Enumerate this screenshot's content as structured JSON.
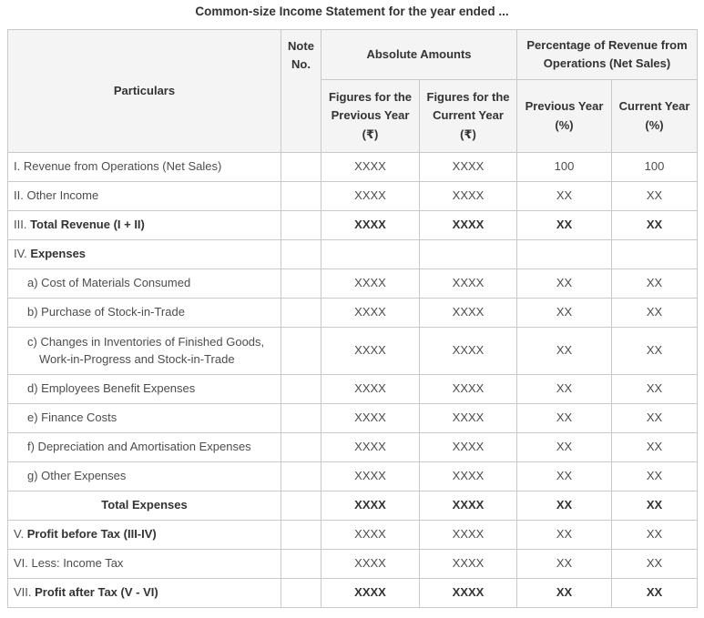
{
  "page": {
    "title": "Common-size Income Statement for the year ended ..."
  },
  "colors": {
    "header_bg": "#f4f4f4",
    "border": "#c9c9c9",
    "text": "#4d4d4d",
    "text_bold": "#333333",
    "background": "#ffffff"
  },
  "table": {
    "columns": {
      "particulars": "Particulars",
      "note_no": "Note\nNo.",
      "absolute_amounts": "Absolute Amounts",
      "percentage": "Percentage of Revenue from\nOperations (Net Sales)",
      "sub_headers": [
        "Figures for the\nPrevious Year\n(₹)",
        "Figures for the\nCurrent Year\n(₹)",
        "Previous Year\n(%)",
        "Current Year\n(%)"
      ]
    },
    "rows": [
      {
        "prefix": "I.",
        "label": "Revenue from Operations (Net Sales)",
        "label2": "",
        "bold": false,
        "indent": false,
        "center": false,
        "tall": false,
        "values": [
          "XXXX",
          "XXXX",
          "100",
          "100"
        ],
        "values_bold": false
      },
      {
        "prefix": "II.",
        "label": "Other Income",
        "label2": "",
        "bold": false,
        "indent": false,
        "center": false,
        "tall": false,
        "values": [
          "XXXX",
          "XXXX",
          "XX",
          "XX"
        ],
        "values_bold": false
      },
      {
        "prefix": "III.",
        "label": "Total Revenue (I + II)",
        "label2": "",
        "bold": true,
        "indent": false,
        "center": false,
        "tall": false,
        "values": [
          "XXXX",
          "XXXX",
          "XX",
          "XX"
        ],
        "values_bold": true
      },
      {
        "prefix": "IV.",
        "label": "Expenses",
        "label2": "",
        "bold": true,
        "indent": false,
        "center": false,
        "tall": false,
        "values": [
          "",
          "",
          "",
          ""
        ],
        "values_bold": false
      },
      {
        "prefix": "",
        "label": "a) Cost of Materials Consumed",
        "label2": "",
        "bold": false,
        "indent": true,
        "center": false,
        "tall": false,
        "values": [
          "XXXX",
          "XXXX",
          "XX",
          "XX"
        ],
        "values_bold": false
      },
      {
        "prefix": "",
        "label": "b) Purchase of Stock-in-Trade",
        "label2": "",
        "bold": false,
        "indent": true,
        "center": false,
        "tall": false,
        "values": [
          "XXXX",
          "XXXX",
          "XX",
          "XX"
        ],
        "values_bold": false
      },
      {
        "prefix": "",
        "label": "c) Changes in Inventories of Finished Goods,",
        "label2": "Work-in-Progress and Stock-in-Trade",
        "bold": false,
        "indent": true,
        "center": false,
        "tall": true,
        "values": [
          "XXXX",
          "XXXX",
          "XX",
          "XX"
        ],
        "values_bold": false
      },
      {
        "prefix": "",
        "label": "d) Employees Benefit Expenses",
        "label2": "",
        "bold": false,
        "indent": true,
        "center": false,
        "tall": false,
        "values": [
          "XXXX",
          "XXXX",
          "XX",
          "XX"
        ],
        "values_bold": false
      },
      {
        "prefix": "",
        "label": "e) Finance Costs",
        "label2": "",
        "bold": false,
        "indent": true,
        "center": false,
        "tall": false,
        "values": [
          "XXXX",
          "XXXX",
          "XX",
          "XX"
        ],
        "values_bold": false
      },
      {
        "prefix": "",
        "label": "f) Depreciation and Amortisation Expenses",
        "label2": "",
        "bold": false,
        "indent": true,
        "center": false,
        "tall": false,
        "values": [
          "XXXX",
          "XXXX",
          "XX",
          "XX"
        ],
        "values_bold": false
      },
      {
        "prefix": "",
        "label": "g) Other Expenses",
        "label2": "",
        "bold": false,
        "indent": true,
        "center": false,
        "tall": false,
        "values": [
          "XXXX",
          "XXXX",
          "XX",
          "XX"
        ],
        "values_bold": false
      },
      {
        "prefix": "",
        "label": "Total Expenses",
        "label2": "",
        "bold": true,
        "indent": false,
        "center": true,
        "tall": false,
        "values": [
          "XXXX",
          "XXXX",
          "XX",
          "XX"
        ],
        "values_bold": true
      },
      {
        "prefix": "V.",
        "label": "Profit before Tax (III-IV)",
        "label2": "",
        "bold": true,
        "indent": false,
        "center": false,
        "tall": false,
        "values": [
          "XXXX",
          "XXXX",
          "XX",
          "XX"
        ],
        "values_bold": false
      },
      {
        "prefix": "VI.",
        "label": "Less: Income Tax",
        "label2": "",
        "bold": false,
        "indent": false,
        "center": false,
        "tall": false,
        "values": [
          "XXXX",
          "XXXX",
          "XX",
          "XX"
        ],
        "values_bold": false
      },
      {
        "prefix": "VII.",
        "label": "Profit after Tax (V - VI)",
        "label2": "",
        "bold": true,
        "indent": false,
        "center": false,
        "tall": false,
        "values": [
          "XXXX",
          "XXXX",
          "XX",
          "XX"
        ],
        "values_bold": true
      }
    ]
  }
}
